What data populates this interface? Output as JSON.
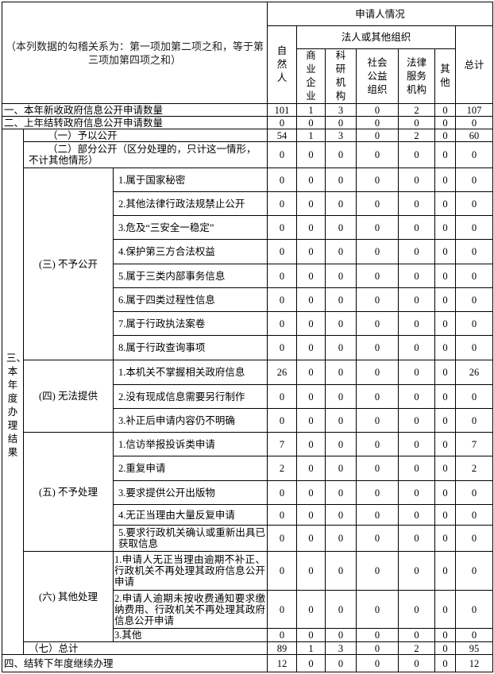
{
  "header": {
    "note": "（本列数据的勾稽关系为：第一项加第二项之和，等于第三项加第四项之和）",
    "applicant": "申请人情况",
    "natural_person": "自然人",
    "legal_org": "法人或其他组织",
    "columns": [
      "商业企业",
      "科研机构",
      "社会公益组织",
      "法律服务机构",
      "其他"
    ],
    "total": "总计"
  },
  "row1": {
    "label": "一、本年新收政府信息公开申请数量",
    "values": [
      "101",
      "1",
      "3",
      "0",
      "2",
      "0",
      "107"
    ]
  },
  "row2": {
    "label": "二、上年结转政府信息公开申请数量",
    "values": [
      "0",
      "0",
      "0",
      "0",
      "0",
      "0",
      "0"
    ]
  },
  "section3": {
    "label": "三、本年度办理结果",
    "disclose": {
      "label": "（一）予以公开",
      "values": [
        "54",
        "1",
        "3",
        "0",
        "2",
        "0",
        "60"
      ]
    },
    "partial": {
      "label": "（二）部分公开（区分处理的，只计这一情形，不计其他情形）",
      "values": [
        "0",
        "0",
        "0",
        "0",
        "0",
        "0",
        "0"
      ]
    },
    "groups": [
      {
        "label": "(三) 不予公开",
        "items": [
          {
            "label": "1.属于国家秘密",
            "values": [
              "0",
              "0",
              "0",
              "0",
              "0",
              "0",
              "0"
            ]
          },
          {
            "label": "2.其他法律行政法规禁止公开",
            "values": [
              "0",
              "0",
              "0",
              "0",
              "0",
              "0",
              "0"
            ]
          },
          {
            "label": "3.危及“三安全一稳定”",
            "values": [
              "0",
              "0",
              "0",
              "0",
              "0",
              "0",
              "0"
            ]
          },
          {
            "label": "4.保护第三方合法权益",
            "values": [
              "0",
              "0",
              "0",
              "0",
              "0",
              "0",
              "0"
            ]
          },
          {
            "label": "5.属于三类内部事务信息",
            "values": [
              "0",
              "0",
              "0",
              "0",
              "0",
              "0",
              "0"
            ]
          },
          {
            "label": "6.属于四类过程性信息",
            "values": [
              "0",
              "0",
              "0",
              "0",
              "0",
              "0",
              "0"
            ]
          },
          {
            "label": "7.属于行政执法案卷",
            "values": [
              "0",
              "0",
              "0",
              "0",
              "0",
              "0",
              "0"
            ]
          },
          {
            "label": "8.属于行政查询事项",
            "values": [
              "0",
              "0",
              "0",
              "0",
              "0",
              "0",
              "0"
            ]
          }
        ]
      },
      {
        "label": "(四) 无法提供",
        "items": [
          {
            "label": "1.本机关不掌握相关政府信息",
            "values": [
              "26",
              "0",
              "0",
              "0",
              "0",
              "0",
              "26"
            ]
          },
          {
            "label": "2.没有现成信息需要另行制作",
            "values": [
              "0",
              "0",
              "0",
              "0",
              "0",
              "0",
              "0"
            ]
          },
          {
            "label": "3.补正后申请内容仍不明确",
            "values": [
              "0",
              "0",
              "0",
              "0",
              "0",
              "0",
              "0"
            ]
          }
        ]
      },
      {
        "label": "(五) 不予处理",
        "items": [
          {
            "label": "1.信访举报投诉类申请",
            "values": [
              "7",
              "0",
              "0",
              "0",
              "0",
              "0",
              "7"
            ]
          },
          {
            "label": "2.重复申请",
            "values": [
              "2",
              "0",
              "0",
              "0",
              "0",
              "0",
              "2"
            ]
          },
          {
            "label": "3.要求提供公开出版物",
            "values": [
              "0",
              "0",
              "0",
              "0",
              "0",
              "0",
              "0"
            ]
          },
          {
            "label": "4.无正当理由大量反复申请",
            "values": [
              "0",
              "0",
              "0",
              "0",
              "0",
              "0",
              "0"
            ]
          },
          {
            "label": "5.要求行政机关确认或重新出具已获取信息",
            "values": [
              "0",
              "0",
              "0",
              "0",
              "0",
              "0",
              "0"
            ]
          }
        ]
      },
      {
        "label": "(六) 其他处理",
        "items": [
          {
            "label": "1.申请人无正当理由逾期不补正、行政机关不再处理其政府信息公开申请",
            "values": [
              "0",
              "0",
              "0",
              "0",
              "0",
              "0",
              "0"
            ]
          },
          {
            "label": "2.申请人逾期未按收费通知要求缴纳费用、行政机关不再处理其政府信息公开申请",
            "values": [
              "0",
              "0",
              "0",
              "0",
              "0",
              "0",
              "0"
            ]
          },
          {
            "label": "3.其他",
            "values": [
              "0",
              "0",
              "0",
              "0",
              "0",
              "0",
              "0"
            ]
          }
        ]
      }
    ],
    "total": {
      "label": "（七）总计",
      "values": [
        "89",
        "1",
        "3",
        "0",
        "2",
        "0",
        "95"
      ]
    }
  },
  "row4": {
    "label": "四、结转下年度继续办理",
    "values": [
      "12",
      "0",
      "0",
      "0",
      "0",
      "0",
      "12"
    ]
  }
}
